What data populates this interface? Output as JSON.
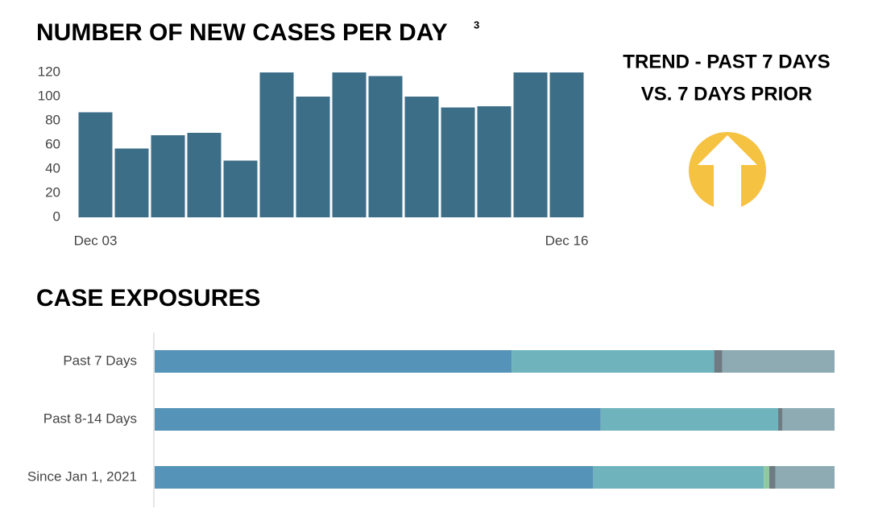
{
  "chart_data": [
    {
      "type": "bar",
      "title": "NUMBER OF NEW CASES PER DAY",
      "title_note": "3",
      "annotations": [
        "TREND - PAST 7 DAYS",
        "VS. 7 DAYS PRIOR"
      ],
      "categories": [
        "Dec 03",
        null,
        null,
        null,
        null,
        null,
        null,
        null,
        null,
        null,
        null,
        null,
        null,
        "Dec 16"
      ],
      "values": [
        87,
        57,
        68,
        70,
        47,
        120,
        100,
        120,
        117,
        100,
        91,
        92,
        120,
        120
      ],
      "color": "#3d6e88",
      "ylim": [
        0,
        120
      ],
      "yticks": [
        0,
        20,
        40,
        60,
        80,
        100,
        120
      ]
    },
    {
      "type": "bar",
      "orientation": "horizontal",
      "stacked": true,
      "title": "CASE EXPOSURES",
      "categories": [
        "Past 7 Days",
        "Past 8-14 Days",
        "Since Jan 1, 2021"
      ],
      "xlim": [
        0,
        100
      ],
      "series": [
        {
          "color": "#5593b8",
          "values": [
            52.5,
            65.6,
            64.5
          ]
        },
        {
          "color": "#6fb3bc",
          "values": [
            29.8,
            26.1,
            25.1
          ]
        },
        {
          "color": "#8fc9a0",
          "values": [
            0,
            0,
            0.8
          ]
        },
        {
          "color": "#6e7b82",
          "values": [
            1.2,
            0.6,
            0.9
          ]
        },
        {
          "color": "#8eaab3",
          "values": [
            16.5,
            7.7,
            8.7
          ]
        }
      ]
    }
  ]
}
